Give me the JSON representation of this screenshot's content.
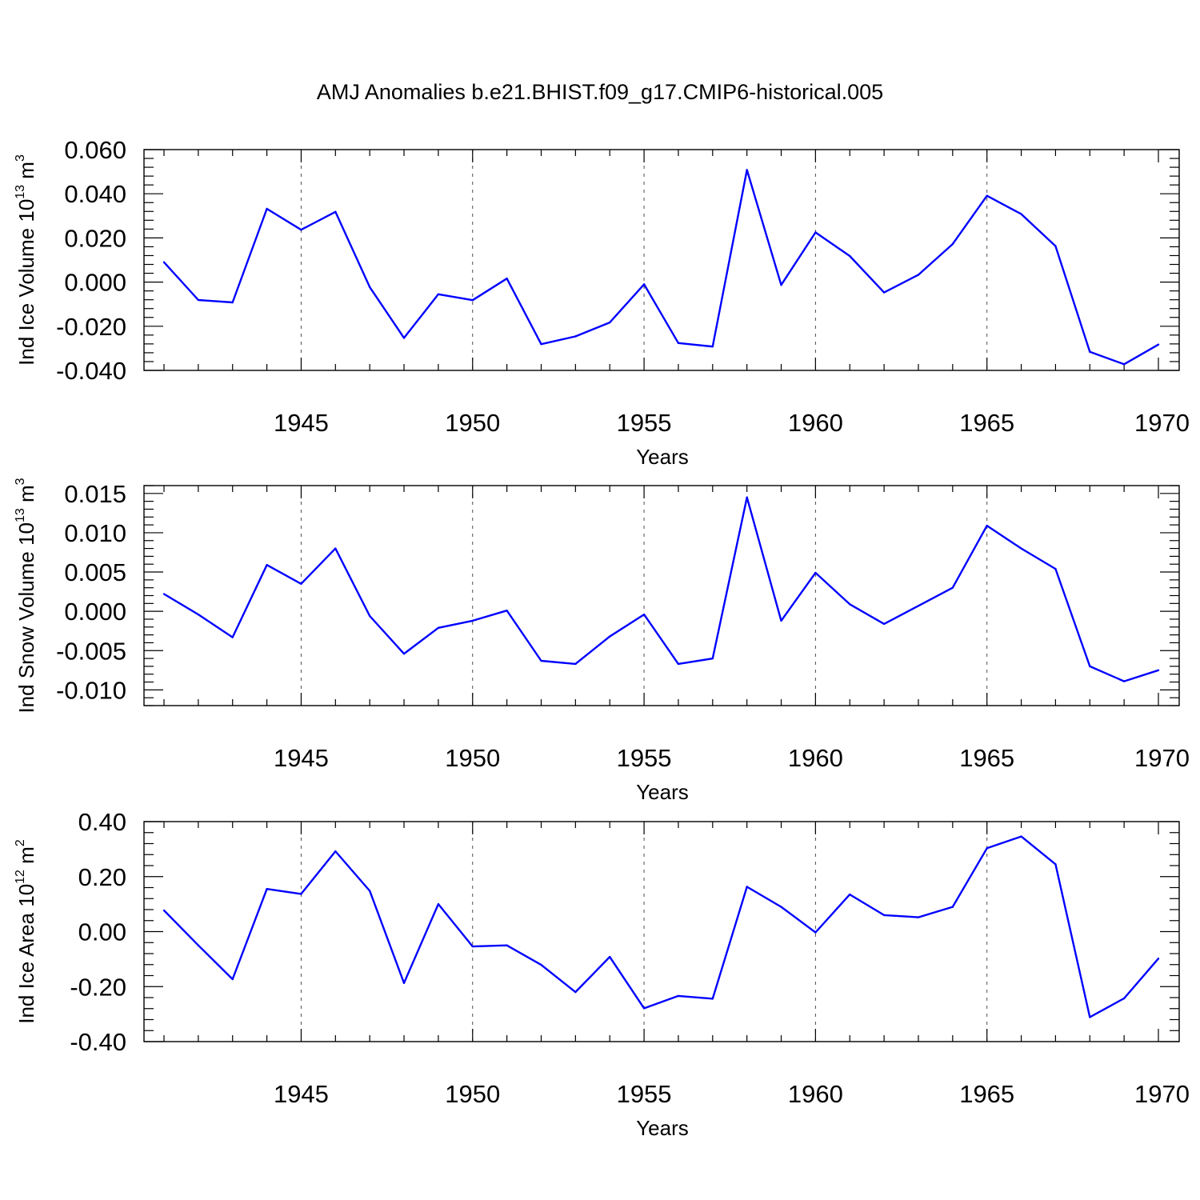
{
  "title": "AMJ Anomalies b.e21.BHIST.f09_g17.CMIP6-historical.005",
  "colors": {
    "series": "#0000ff",
    "axis": "#000000"
  },
  "chart_data": [
    {
      "type": "line",
      "ylabel": "Ind Ice Volume 10",
      "ylabel_exp": "13",
      "ylabel_unit": " m",
      "ylabel_unit_exp": "3",
      "xlabel": "Years",
      "xlim": [
        1941,
        1970
      ],
      "ylim": [
        -0.04,
        0.06
      ],
      "yticks": [
        -0.04,
        -0.02,
        0.0,
        0.02,
        0.04,
        0.06
      ],
      "ytick_labels": [
        "-0.040",
        "-0.020",
        "0.000",
        "0.020",
        "0.040",
        "0.060"
      ],
      "xticks": [
        1945,
        1950,
        1955,
        1960,
        1965,
        1970
      ],
      "xtick_labels": [
        "1945",
        "1950",
        "1955",
        "1960",
        "1965",
        "1970"
      ],
      "grid": "vertical dashed at labeled years",
      "x": [
        1941,
        1942,
        1943,
        1944,
        1945,
        1946,
        1947,
        1948,
        1949,
        1950,
        1951,
        1952,
        1953,
        1954,
        1955,
        1956,
        1957,
        1958,
        1959,
        1960,
        1961,
        1962,
        1963,
        1964,
        1965,
        1966,
        1967,
        1968,
        1969,
        1970
      ],
      "values": [
        0.009,
        -0.0081,
        -0.0092,
        0.0332,
        0.0237,
        0.0318,
        -0.0023,
        -0.0253,
        -0.0055,
        -0.0082,
        0.0016,
        -0.0281,
        -0.0246,
        -0.0183,
        -0.001,
        -0.0276,
        -0.0292,
        0.0508,
        -0.0013,
        0.0225,
        0.0118,
        -0.0047,
        0.0033,
        0.0172,
        0.0391,
        0.0308,
        0.0163,
        -0.0316,
        -0.0372,
        -0.0283
      ]
    },
    {
      "type": "line",
      "ylabel": "Ind Snow Volume 10",
      "ylabel_exp": "13",
      "ylabel_unit": " m",
      "ylabel_unit_exp": "3",
      "xlabel": "Years",
      "xlim": [
        1941,
        1970
      ],
      "ylim": [
        -0.012,
        0.016
      ],
      "yticks": [
        -0.01,
        -0.005,
        0.0,
        0.005,
        0.01,
        0.015
      ],
      "ytick_labels": [
        "-0.010",
        "-0.005",
        "0.000",
        "0.005",
        "0.010",
        "0.015"
      ],
      "xticks": [
        1945,
        1950,
        1955,
        1960,
        1965,
        1970
      ],
      "xtick_labels": [
        "1945",
        "1950",
        "1955",
        "1960",
        "1965",
        "1970"
      ],
      "grid": "vertical dashed at labeled years",
      "x": [
        1941,
        1942,
        1943,
        1944,
        1945,
        1946,
        1947,
        1948,
        1949,
        1950,
        1951,
        1952,
        1953,
        1954,
        1955,
        1956,
        1957,
        1958,
        1959,
        1960,
        1961,
        1962,
        1963,
        1964,
        1965,
        1966,
        1967,
        1968,
        1969,
        1970
      ],
      "values": [
        0.0022,
        -0.0004,
        -0.0033,
        0.0059,
        0.0035,
        0.008,
        -0.0006,
        -0.0054,
        -0.0021,
        -0.0012,
        0.0001,
        -0.0063,
        -0.0067,
        -0.0032,
        -0.0004,
        -0.0067,
        -0.006,
        0.0145,
        -0.0012,
        0.0049,
        0.0009,
        -0.0016,
        0.0007,
        0.003,
        0.0109,
        0.008,
        0.0054,
        -0.007,
        -0.0089,
        -0.0075
      ]
    },
    {
      "type": "line",
      "ylabel": "Ind Ice Area 10",
      "ylabel_exp": "12",
      "ylabel_unit": " m",
      "ylabel_unit_exp": "2",
      "xlabel": "Years",
      "xlim": [
        1941,
        1970
      ],
      "ylim": [
        -0.4,
        0.4
      ],
      "yticks": [
        -0.4,
        -0.2,
        0.0,
        0.2,
        0.4
      ],
      "ytick_labels": [
        "-0.40",
        "-0.20",
        "0.00",
        "0.20",
        "0.40"
      ],
      "xticks": [
        1945,
        1950,
        1955,
        1960,
        1965,
        1970
      ],
      "xtick_labels": [
        "1945",
        "1950",
        "1955",
        "1960",
        "1965",
        "1970"
      ],
      "grid": "vertical dashed at labeled years",
      "x": [
        1941,
        1942,
        1943,
        1944,
        1945,
        1946,
        1947,
        1948,
        1949,
        1950,
        1951,
        1952,
        1953,
        1954,
        1955,
        1956,
        1957,
        1958,
        1959,
        1960,
        1961,
        1962,
        1963,
        1964,
        1965,
        1966,
        1967,
        1968,
        1969,
        1970
      ],
      "values": [
        0.077,
        -0.05,
        -0.173,
        0.155,
        0.137,
        0.292,
        0.148,
        -0.187,
        0.1,
        -0.054,
        -0.05,
        -0.121,
        -0.22,
        -0.092,
        -0.279,
        -0.234,
        -0.244,
        0.163,
        0.09,
        -0.003,
        0.135,
        0.06,
        0.052,
        0.09,
        0.303,
        0.346,
        0.245,
        -0.311,
        -0.243,
        -0.098
      ]
    }
  ]
}
